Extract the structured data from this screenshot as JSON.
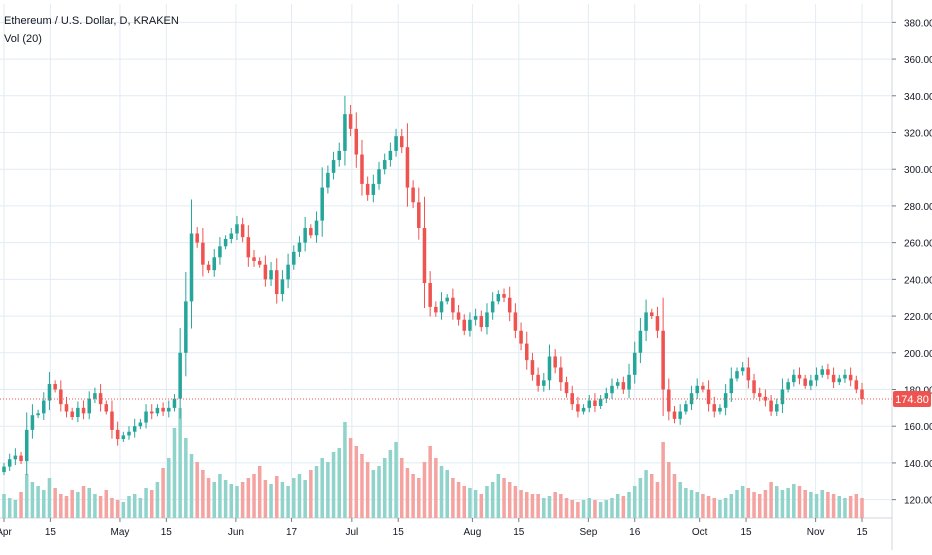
{
  "legend": {
    "symbol_title": "Ethereum / U.S. Dollar, D, KRAKEN",
    "volume_label": "Vol (20)"
  },
  "chart_data": {
    "type": "candlestick",
    "xlabel": "",
    "ylabel": "",
    "ylim": [
      110,
      390
    ],
    "grid": true,
    "y_ticks": [
      "120.00",
      "140.00",
      "160.00",
      "180.00",
      "200.00",
      "220.00",
      "240.00",
      "260.00",
      "280.00",
      "300.00",
      "320.00",
      "340.00",
      "360.00",
      "380.00"
    ],
    "x_ticks": [
      "Apr",
      "15",
      "May",
      "15",
      "Jun",
      "17",
      "Jul",
      "15",
      "Aug",
      "15",
      "Sep",
      "16",
      "Oct",
      "15",
      "Nov",
      "15"
    ],
    "last_price": 174.8,
    "last_price_label": "174.80",
    "colors": {
      "up": "#26a69a",
      "down": "#ef5350",
      "up_volume": "#8fd3cb",
      "down_volume": "#f5a3a0",
      "grid": "#e1ecf2"
    },
    "closes": [
      138,
      142,
      144,
      141,
      158,
      166,
      167,
      174,
      183,
      180,
      172,
      168,
      165,
      170,
      167,
      175,
      178,
      172,
      168,
      158,
      153,
      155,
      157,
      160,
      162,
      168,
      167,
      170,
      168,
      170,
      175,
      200,
      228,
      265,
      260,
      248,
      245,
      252,
      258,
      262,
      265,
      270,
      263,
      252,
      250,
      248,
      240,
      245,
      232,
      240,
      248,
      255,
      260,
      268,
      264,
      272,
      290,
      298,
      305,
      310,
      330,
      322,
      308,
      292,
      286,
      292,
      300,
      305,
      310,
      318,
      312,
      290,
      282,
      268,
      238,
      225,
      222,
      228,
      230,
      222,
      218,
      212,
      218,
      220,
      214,
      222,
      228,
      232,
      230,
      222,
      212,
      205,
      196,
      188,
      182,
      185,
      198,
      192,
      184,
      178,
      172,
      168,
      170,
      174,
      171,
      175,
      178,
      182,
      184,
      180,
      188,
      200,
      212,
      222,
      220,
      212,
      180,
      168,
      164,
      168,
      172,
      178,
      182,
      180,
      172,
      168,
      170,
      178,
      186,
      190,
      192,
      185,
      178,
      176,
      174,
      168,
      172,
      180,
      184,
      188,
      186,
      182,
      185,
      188,
      191,
      188,
      184,
      186,
      188,
      185,
      180,
      174.8
    ],
    "volumes": [
      12,
      10,
      9,
      13,
      22,
      18,
      16,
      14,
      20,
      15,
      12,
      11,
      14,
      13,
      16,
      15,
      12,
      11,
      14,
      10,
      9,
      8,
      11,
      12,
      10,
      15,
      14,
      18,
      25,
      30,
      45,
      55,
      40,
      32,
      28,
      24,
      20,
      18,
      22,
      19,
      17,
      16,
      18,
      20,
      22,
      26,
      19,
      17,
      21,
      18,
      16,
      20,
      22,
      19,
      24,
      26,
      30,
      28,
      33,
      35,
      48,
      40,
      36,
      32,
      28,
      24,
      26,
      30,
      34,
      38,
      30,
      25,
      22,
      20,
      28,
      36,
      30,
      26,
      24,
      20,
      18,
      16,
      15,
      14,
      12,
      16,
      18,
      22,
      20,
      18,
      16,
      14,
      13,
      12,
      12,
      10,
      11,
      13,
      12,
      10,
      9,
      8,
      9,
      10,
      9,
      8,
      9,
      10,
      12,
      11,
      13,
      16,
      20,
      24,
      22,
      18,
      38,
      28,
      22,
      18,
      15,
      14,
      13,
      12,
      11,
      10,
      9,
      10,
      12,
      14,
      16,
      15,
      13,
      12,
      14,
      18,
      16,
      14,
      15,
      17,
      16,
      14,
      13,
      12,
      14,
      13,
      12,
      11,
      10,
      11,
      12,
      10
    ]
  }
}
